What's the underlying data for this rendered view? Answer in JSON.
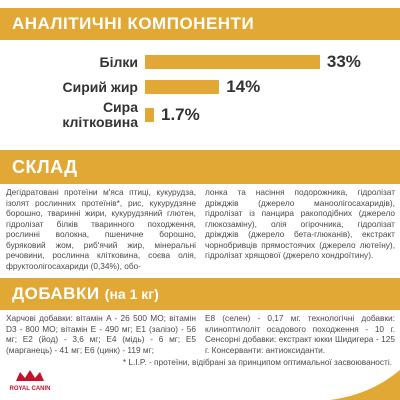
{
  "components": {
    "title": "АНАЛІТИЧНІ КОМПОНЕНТИ",
    "items": [
      {
        "label": "Білки",
        "value": 33,
        "value_label": "33%"
      },
      {
        "label": "Сирий жир",
        "value": 14,
        "value_label": "14%"
      },
      {
        "label": "Сира\nклітковина",
        "value": 1.7,
        "value_label": "1.7%"
      }
    ]
  },
  "composition": {
    "title": "СКЛАД",
    "columns": [
      "Дегідратовані протеїни м'яса птиці, кукурудза, ізолят рослинних протеїнів*, рис, кукурудзяне борошно, тваринні жири, кукурудзяний глютен, гідролізат білків тваринного походження, рослинні волокна, пшеничне борошно, буряковий жом, риб'ячий жир, мінеральні речовини, рослинна клітковина, соєва олія, фруктоолігосахариди (0,34%), обо-",
      "лонка та насіння подорожника, гідролізат дріжджів (джерело маноолігосахаридів), гідролізат із панцира ракоподібних (джерело глюкозаміну), олія огірочника, гідролізат дріжджів (джерело бета-глюканів), екстракт чорнобривців прямостоячих (джерело лютеїну), гідролізат хрящової (джерело хондроїтину)."
    ]
  },
  "additives": {
    "title": "ДОБАВКИ",
    "subtitle": "(на 1 кг)",
    "columns": [
      "Харчові добавки: вітамін A - 26 500 МО; вітамін D3 - 800 МО; вітамін E - 490 мг; E1 (залізо) - 56 мг; E2 (йод) - 3,6 мг; E4 (мідь) - 6 мг; E5 (марганець) - 41 мг; E6 (цинк) - 119 мг;",
      "E8 (селен) - 0,17 мг. технологічні добавки: клиноптилоліт осадового походження - 10 г. Сенсорні добавки: екстракт юкки Шидигера - 125 г. Консерванти: антиоксиданти."
    ]
  },
  "footnote": "* L.I.P. - протеїни, відібрані за принципом оптимальної засвоюваності.",
  "logo": "ROYAL CANIN"
}
